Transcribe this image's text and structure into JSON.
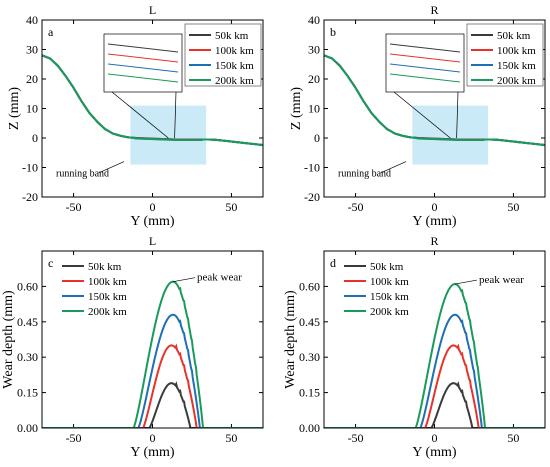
{
  "chart_data": [
    {
      "type": "line",
      "title": "L",
      "panel_letter": "a",
      "xlabel": "Y (mm)",
      "ylabel": "Z (mm)",
      "xlim": [
        -70,
        70
      ],
      "ylim": [
        -20,
        40
      ],
      "xticks": [
        -50,
        0,
        50
      ],
      "yticks": [
        -20,
        -10,
        0,
        10,
        20,
        30,
        40
      ],
      "annotation": "running band",
      "legend_position": "top-right",
      "series": [
        {
          "name": "50k km",
          "color": "#3b3b3b"
        },
        {
          "name": "100k km",
          "color": "#e8322b"
        },
        {
          "name": "150k km",
          "color": "#1f6fb5"
        },
        {
          "name": "200k km",
          "color": "#1a9a5a"
        }
      ],
      "x": [
        -70,
        -65,
        -60,
        -55,
        -50,
        -45,
        -40,
        -35,
        -30,
        -25,
        -20,
        -15,
        -10,
        -5,
        0,
        5,
        10,
        15,
        20,
        25,
        30,
        35,
        40,
        45,
        50,
        55,
        60,
        65,
        70
      ],
      "profile_z": [
        28,
        27,
        24.5,
        21,
        17,
        12.5,
        8.5,
        5.5,
        3,
        1.5,
        0.7,
        0.2,
        0,
        -0.1,
        -0.2,
        -0.3,
        -0.4,
        -0.5,
        -0.5,
        -0.5,
        -0.5,
        -0.5,
        -0.6,
        -0.9,
        -1.2,
        -1.5,
        -1.8,
        -2.1,
        -2.4
      ]
    },
    {
      "type": "line",
      "title": "R",
      "panel_letter": "b",
      "xlabel": "Y (mm)",
      "ylabel": "Z (mm)",
      "xlim": [
        -70,
        70
      ],
      "ylim": [
        -20,
        40
      ],
      "xticks": [
        -50,
        0,
        50
      ],
      "yticks": [
        -20,
        -10,
        0,
        10,
        20,
        30,
        40
      ],
      "annotation": "running band",
      "legend_position": "top-right",
      "series": [
        {
          "name": "50k km",
          "color": "#3b3b3b"
        },
        {
          "name": "100k km",
          "color": "#e8322b"
        },
        {
          "name": "150k km",
          "color": "#1f6fb5"
        },
        {
          "name": "200k km",
          "color": "#1a9a5a"
        }
      ],
      "x": [
        -70,
        -65,
        -60,
        -55,
        -50,
        -45,
        -40,
        -35,
        -30,
        -25,
        -20,
        -15,
        -10,
        -5,
        0,
        5,
        10,
        15,
        20,
        25,
        30,
        35,
        40,
        45,
        50,
        55,
        60,
        65,
        70
      ],
      "profile_z": [
        28,
        27,
        24.5,
        21,
        17,
        12.5,
        8.5,
        5.5,
        3,
        1.5,
        0.7,
        0.2,
        0,
        -0.1,
        -0.2,
        -0.3,
        -0.4,
        -0.5,
        -0.5,
        -0.5,
        -0.5,
        -0.5,
        -0.6,
        -0.9,
        -1.2,
        -1.5,
        -1.8,
        -2.1,
        -2.4
      ]
    },
    {
      "type": "line",
      "title": "L",
      "panel_letter": "c",
      "xlabel": "Y (mm)",
      "ylabel": "Wear depth (mm)",
      "xlim": [
        -70,
        70
      ],
      "ylim": [
        0,
        0.75
      ],
      "xticks": [
        -50,
        0,
        50
      ],
      "yticks": [
        "0.00",
        "0.15",
        "0.30",
        "0.45",
        "0.60"
      ],
      "annotation": "peak wear",
      "legend_position": "top-left",
      "series": [
        {
          "name": "50k km",
          "color": "#3b3b3b",
          "x0": -2,
          "x1": 24,
          "peak_x": 12,
          "peak": 0.19
        },
        {
          "name": "100k km",
          "color": "#e8322b",
          "x0": -6,
          "x1": 28,
          "peak_x": 12,
          "peak": 0.35
        },
        {
          "name": "150k km",
          "color": "#1f6fb5",
          "x0": -9,
          "x1": 30,
          "peak_x": 13,
          "peak": 0.48
        },
        {
          "name": "200k km",
          "color": "#1a9a5a",
          "x0": -12,
          "x1": 32,
          "peak_x": 13,
          "peak": 0.62
        }
      ]
    },
    {
      "type": "line",
      "title": "R",
      "panel_letter": "d",
      "xlabel": "Y (mm)",
      "ylabel": "Wear depth (mm)",
      "xlim": [
        -70,
        70
      ],
      "ylim": [
        0,
        0.75
      ],
      "xticks": [
        -50,
        0,
        50
      ],
      "yticks": [
        "0.00",
        "0.15",
        "0.30",
        "0.45",
        "0.60"
      ],
      "annotation": "peak wear",
      "legend_position": "top-left",
      "series": [
        {
          "name": "50k km",
          "color": "#3b3b3b",
          "x0": -2,
          "x1": 24,
          "peak_x": 12,
          "peak": 0.19
        },
        {
          "name": "100k km",
          "color": "#e8322b",
          "x0": -6,
          "x1": 28,
          "peak_x": 12,
          "peak": 0.35
        },
        {
          "name": "150k km",
          "color": "#1f6fb5",
          "x0": -9,
          "x1": 30,
          "peak_x": 13,
          "peak": 0.48
        },
        {
          "name": "200k km",
          "color": "#1a9a5a",
          "x0": -12,
          "x1": 32,
          "peak_x": 13,
          "peak": 0.61
        }
      ]
    }
  ]
}
